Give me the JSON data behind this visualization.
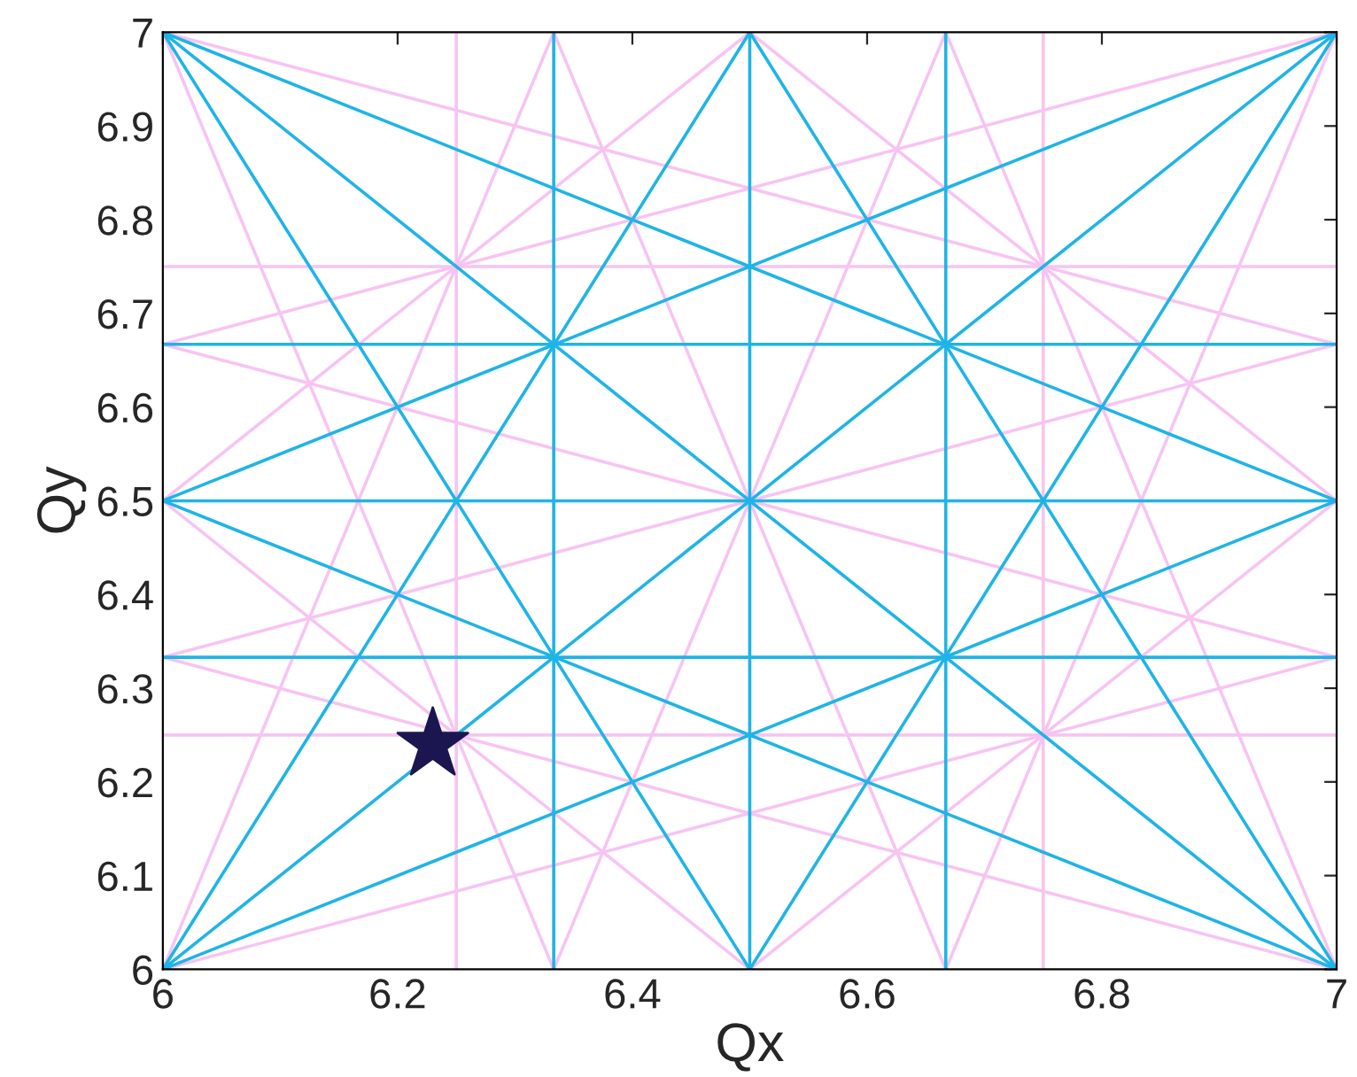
{
  "chart_data": {
    "type": "line",
    "xlabel": "Qx",
    "ylabel": "Qy",
    "xlim": [
      6,
      7
    ],
    "ylim": [
      6,
      7
    ],
    "xticks": [
      6,
      6.2,
      6.4,
      6.6,
      6.8,
      7
    ],
    "yticks": [
      6,
      6.1,
      6.2,
      6.3,
      6.4,
      6.5,
      6.6,
      6.7,
      6.8,
      6.9,
      7
    ],
    "grid": false,
    "legend": false,
    "marker": "none",
    "line_style": "solid",
    "series": [
      {
        "color": "#f7c4f2",
        "x": [
          6.25,
          6.25
        ],
        "values": [
          6,
          7
        ]
      },
      {
        "color": "#f7c4f2",
        "x": [
          6.75,
          6.75
        ],
        "values": [
          6,
          7
        ]
      },
      {
        "color": "#f7c4f2",
        "x": [
          6,
          7
        ],
        "values": [
          6.25,
          6.25
        ]
      },
      {
        "color": "#f7c4f2",
        "x": [
          6,
          7
        ],
        "values": [
          6.75,
          6.75
        ]
      },
      {
        "color": "#f7c4f2",
        "x": [
          6,
          6.333
        ],
        "values": [
          7,
          6
        ]
      },
      {
        "color": "#f7c4f2",
        "x": [
          6.333,
          6.667
        ],
        "values": [
          7,
          6
        ]
      },
      {
        "color": "#f7c4f2",
        "x": [
          6.667,
          7
        ],
        "values": [
          7,
          6
        ]
      },
      {
        "color": "#f7c4f2",
        "x": [
          6,
          6.333
        ],
        "values": [
          6,
          7
        ]
      },
      {
        "color": "#f7c4f2",
        "x": [
          6.333,
          6.667
        ],
        "values": [
          6,
          7
        ]
      },
      {
        "color": "#f7c4f2",
        "x": [
          6.667,
          7
        ],
        "values": [
          6,
          7
        ]
      },
      {
        "color": "#f7c4f2",
        "x": [
          7,
          6
        ],
        "values": [
          6,
          6.333
        ]
      },
      {
        "color": "#f7c4f2",
        "x": [
          7,
          6
        ],
        "values": [
          6.333,
          6.667
        ]
      },
      {
        "color": "#f7c4f2",
        "x": [
          7,
          6
        ],
        "values": [
          6.667,
          7
        ]
      },
      {
        "color": "#f7c4f2",
        "x": [
          6,
          7
        ],
        "values": [
          6,
          6.333
        ]
      },
      {
        "color": "#f7c4f2",
        "x": [
          6,
          7
        ],
        "values": [
          6.333,
          6.667
        ]
      },
      {
        "color": "#f7c4f2",
        "x": [
          6,
          7
        ],
        "values": [
          6.667,
          7
        ]
      },
      {
        "color": "#f7c4f2",
        "x": [
          6,
          6.5
        ],
        "values": [
          6.5,
          6
        ]
      },
      {
        "color": "#f7c4f2",
        "x": [
          6.5,
          7
        ],
        "values": [
          7,
          6.5
        ]
      },
      {
        "color": "#f7c4f2",
        "x": [
          6.5,
          7
        ],
        "values": [
          6,
          6.5
        ]
      },
      {
        "color": "#f7c4f2",
        "x": [
          6,
          6.5
        ],
        "values": [
          6.5,
          7
        ]
      },
      {
        "color": "#1fb4e6",
        "x": [
          6.333,
          6.333
        ],
        "values": [
          6,
          7
        ]
      },
      {
        "color": "#1fb4e6",
        "x": [
          6.5,
          6.5
        ],
        "values": [
          6,
          7
        ]
      },
      {
        "color": "#1fb4e6",
        "x": [
          6.667,
          6.667
        ],
        "values": [
          6,
          7
        ]
      },
      {
        "color": "#1fb4e6",
        "x": [
          6,
          7
        ],
        "values": [
          6.333,
          6.333
        ]
      },
      {
        "color": "#1fb4e6",
        "x": [
          6,
          7
        ],
        "values": [
          6.5,
          6.5
        ]
      },
      {
        "color": "#1fb4e6",
        "x": [
          6,
          7
        ],
        "values": [
          6.667,
          6.667
        ]
      },
      {
        "color": "#1fb4e6",
        "x": [
          6,
          7
        ],
        "values": [
          7,
          6
        ]
      },
      {
        "color": "#1fb4e6",
        "x": [
          6,
          7
        ],
        "values": [
          6,
          7
        ]
      },
      {
        "color": "#1fb4e6",
        "x": [
          6,
          6.5
        ],
        "values": [
          7,
          6
        ]
      },
      {
        "color": "#1fb4e6",
        "x": [
          6.5,
          7
        ],
        "values": [
          7,
          6
        ]
      },
      {
        "color": "#1fb4e6",
        "x": [
          6,
          6.5
        ],
        "values": [
          6,
          7
        ]
      },
      {
        "color": "#1fb4e6",
        "x": [
          6.5,
          7
        ],
        "values": [
          6,
          7
        ]
      },
      {
        "color": "#1fb4e6",
        "x": [
          6,
          7
        ],
        "values": [
          6.5,
          6
        ]
      },
      {
        "color": "#1fb4e6",
        "x": [
          6,
          7
        ],
        "values": [
          7,
          6.5
        ]
      },
      {
        "color": "#1fb4e6",
        "x": [
          6,
          7
        ],
        "values": [
          6,
          6.5
        ]
      },
      {
        "color": "#1fb4e6",
        "x": [
          6,
          7
        ],
        "values": [
          6.5,
          7
        ]
      },
      {
        "type": "scatter",
        "marker": "star",
        "color": "#1c1650",
        "x": [
          6.23
        ],
        "values": [
          6.24
        ]
      }
    ]
  }
}
